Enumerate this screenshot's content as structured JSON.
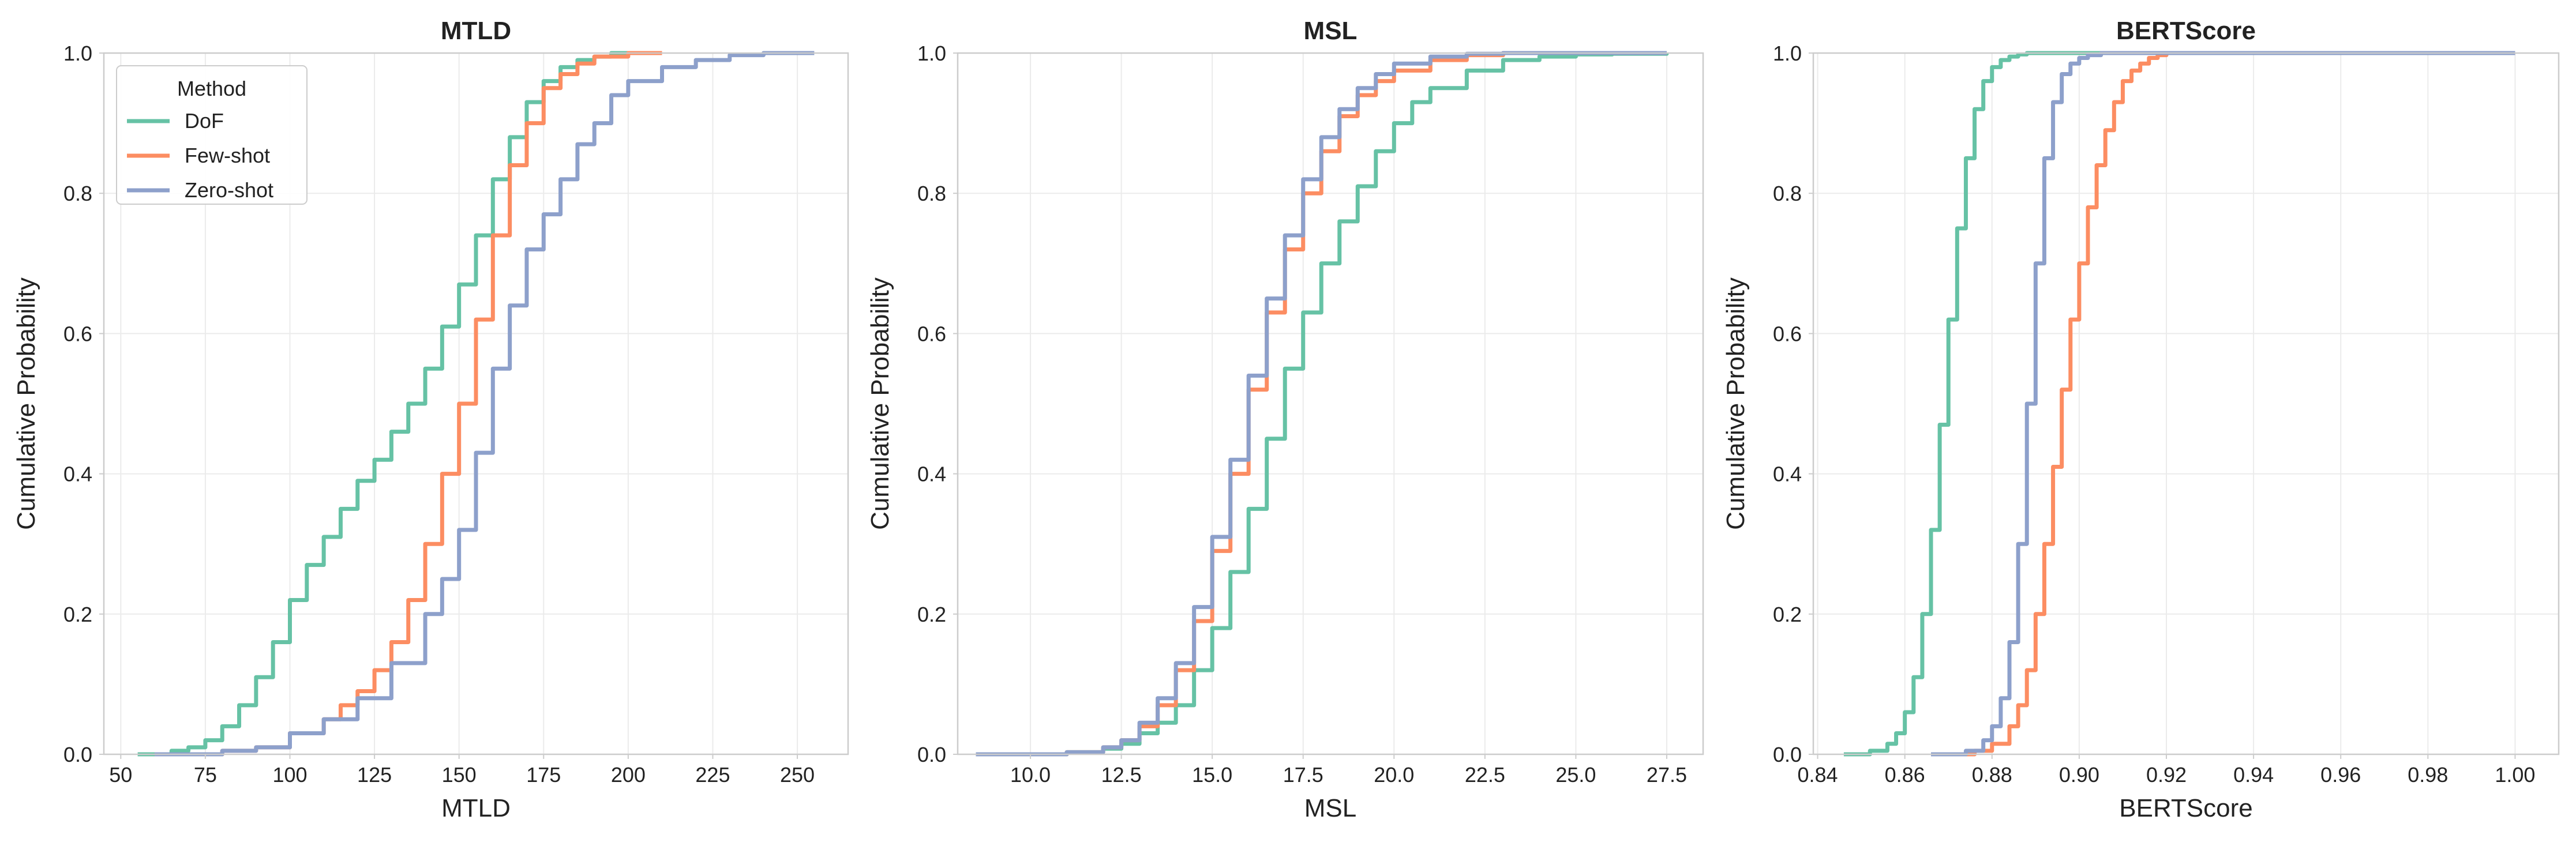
{
  "colors": {
    "DoF": "#66c2a5",
    "Few-shot": "#fc8d62",
    "Zero-shot": "#8da0cb",
    "grid": "#ebebeb",
    "frame": "#cccccc"
  },
  "legend": {
    "title": "Method",
    "placement": "upper-left of first panel",
    "entries": [
      "DoF",
      "Few-shot",
      "Zero-shot"
    ]
  },
  "chart_data": [
    {
      "type": "line",
      "title": "MTLD",
      "xlabel": "MTLD",
      "ylabel": "Cumulative Probability",
      "xlim": [
        45,
        265
      ],
      "ylim": [
        0,
        1
      ],
      "xticks": [
        50,
        75,
        100,
        125,
        150,
        175,
        200,
        225,
        250
      ],
      "xtick_labels": [
        "50",
        "75",
        "100",
        "125",
        "150",
        "175",
        "200",
        "225",
        "250"
      ],
      "yticks": [
        0,
        0.2,
        0.4,
        0.6,
        0.8,
        1.0
      ],
      "ytick_labels": [
        "0.0",
        "0.2",
        "0.4",
        "0.6",
        "0.8",
        "1.0"
      ],
      "grid": true,
      "series": [
        {
          "name": "DoF",
          "x": [
            55,
            65,
            70,
            75,
            80,
            85,
            90,
            95,
            100,
            105,
            110,
            115,
            120,
            125,
            130,
            135,
            140,
            145,
            150,
            155,
            160,
            165,
            170,
            175,
            180,
            185,
            190,
            195,
            200
          ],
          "y": [
            0,
            0.005,
            0.01,
            0.02,
            0.04,
            0.07,
            0.11,
            0.16,
            0.22,
            0.27,
            0.31,
            0.35,
            0.39,
            0.42,
            0.46,
            0.5,
            0.55,
            0.61,
            0.67,
            0.74,
            0.82,
            0.88,
            0.93,
            0.96,
            0.98,
            0.99,
            0.995,
            1.0,
            1.0
          ]
        },
        {
          "name": "Few-shot",
          "x": [
            60,
            80,
            90,
            100,
            110,
            115,
            120,
            125,
            130,
            135,
            140,
            145,
            150,
            155,
            160,
            165,
            170,
            175,
            180,
            185,
            190,
            200,
            210
          ],
          "y": [
            0,
            0.005,
            0.01,
            0.03,
            0.05,
            0.07,
            0.09,
            0.12,
            0.16,
            0.22,
            0.3,
            0.4,
            0.5,
            0.62,
            0.74,
            0.84,
            0.9,
            0.95,
            0.97,
            0.985,
            0.995,
            1.0,
            1.0
          ]
        },
        {
          "name": "Zero-shot",
          "x": [
            60,
            80,
            90,
            100,
            110,
            120,
            130,
            140,
            145,
            150,
            155,
            160,
            165,
            170,
            175,
            180,
            185,
            190,
            195,
            200,
            210,
            220,
            230,
            240,
            255
          ],
          "y": [
            0,
            0.005,
            0.01,
            0.03,
            0.05,
            0.08,
            0.13,
            0.2,
            0.25,
            0.32,
            0.43,
            0.55,
            0.64,
            0.72,
            0.77,
            0.82,
            0.87,
            0.9,
            0.94,
            0.96,
            0.98,
            0.99,
            0.997,
            1.0,
            1.0
          ]
        }
      ]
    },
    {
      "type": "line",
      "title": "MSL",
      "xlabel": "MSL",
      "ylabel": "Cumulative Probability",
      "xlim": [
        8,
        28.5
      ],
      "ylim": [
        0,
        1
      ],
      "xticks": [
        10,
        12.5,
        15,
        17.5,
        20,
        22.5,
        25,
        27.5
      ],
      "xtick_labels": [
        "10.0",
        "12.5",
        "15.0",
        "17.5",
        "20.0",
        "22.5",
        "25.0",
        "27.5"
      ],
      "yticks": [
        0,
        0.2,
        0.4,
        0.6,
        0.8,
        1.0
      ],
      "ytick_labels": [
        "0.0",
        "0.2",
        "0.4",
        "0.6",
        "0.8",
        "1.0"
      ],
      "grid": true,
      "series": [
        {
          "name": "DoF",
          "x": [
            8.5,
            11,
            12,
            12.5,
            13,
            13.5,
            14,
            14.5,
            15,
            15.5,
            16,
            16.5,
            17,
            17.5,
            18,
            18.5,
            19,
            19.5,
            20,
            20.5,
            21,
            22,
            23,
            24,
            25,
            26,
            27.5
          ],
          "y": [
            0,
            0.003,
            0.008,
            0.015,
            0.03,
            0.045,
            0.07,
            0.12,
            0.18,
            0.26,
            0.35,
            0.45,
            0.55,
            0.63,
            0.7,
            0.76,
            0.81,
            0.86,
            0.9,
            0.93,
            0.95,
            0.975,
            0.99,
            0.995,
            0.998,
            0.999,
            1.0
          ]
        },
        {
          "name": "Few-shot",
          "x": [
            8.5,
            11,
            12,
            12.5,
            13,
            13.5,
            14,
            14.5,
            15,
            15.5,
            16,
            16.5,
            17,
            17.5,
            18,
            18.5,
            19,
            19.5,
            20,
            21,
            22,
            23,
            25,
            27.5
          ],
          "y": [
            0,
            0.003,
            0.01,
            0.02,
            0.04,
            0.07,
            0.12,
            0.19,
            0.29,
            0.4,
            0.52,
            0.63,
            0.72,
            0.8,
            0.86,
            0.91,
            0.94,
            0.96,
            0.975,
            0.99,
            0.997,
            1.0,
            1.0,
            1.0
          ]
        },
        {
          "name": "Zero-shot",
          "x": [
            8.5,
            11,
            12,
            12.5,
            13,
            13.5,
            14,
            14.5,
            15,
            15.5,
            16,
            16.5,
            17,
            17.5,
            18,
            18.5,
            19,
            19.5,
            20,
            21,
            22,
            23,
            25,
            27.5
          ],
          "y": [
            0,
            0.003,
            0.01,
            0.02,
            0.045,
            0.08,
            0.13,
            0.21,
            0.31,
            0.42,
            0.54,
            0.65,
            0.74,
            0.82,
            0.88,
            0.92,
            0.95,
            0.97,
            0.985,
            0.995,
            0.999,
            1.0,
            1.0,
            1.0
          ]
        }
      ]
    },
    {
      "type": "line",
      "title": "BERTScore",
      "xlabel": "BERTScore",
      "ylabel": "Cumulative Probability",
      "xlim": [
        0.839,
        1.01
      ],
      "ylim": [
        0,
        1
      ],
      "xticks": [
        0.84,
        0.86,
        0.88,
        0.9,
        0.92,
        0.94,
        0.96,
        0.98,
        1.0
      ],
      "xtick_labels": [
        "0.84",
        "0.86",
        "0.88",
        "0.90",
        "0.92",
        "0.94",
        "0.96",
        "0.98",
        "1.00"
      ],
      "yticks": [
        0,
        0.2,
        0.4,
        0.6,
        0.8,
        1.0
      ],
      "ytick_labels": [
        "0.0",
        "0.2",
        "0.4",
        "0.6",
        "0.8",
        "1.0"
      ],
      "grid": true,
      "series": [
        {
          "name": "DoF",
          "x": [
            0.846,
            0.852,
            0.856,
            0.858,
            0.86,
            0.862,
            0.864,
            0.866,
            0.868,
            0.87,
            0.872,
            0.874,
            0.876,
            0.878,
            0.88,
            0.882,
            0.884,
            0.886,
            0.888,
            0.89,
            1.0
          ],
          "y": [
            0,
            0.005,
            0.015,
            0.03,
            0.06,
            0.11,
            0.2,
            0.32,
            0.47,
            0.62,
            0.75,
            0.85,
            0.92,
            0.96,
            0.98,
            0.99,
            0.995,
            0.998,
            1.0,
            1.0,
            1.0
          ]
        },
        {
          "name": "Few-shot",
          "x": [
            0.87,
            0.876,
            0.88,
            0.884,
            0.886,
            0.888,
            0.89,
            0.892,
            0.894,
            0.896,
            0.898,
            0.9,
            0.902,
            0.904,
            0.906,
            0.908,
            0.91,
            0.912,
            0.914,
            0.916,
            0.918,
            0.92,
            1.0
          ],
          "y": [
            0,
            0.005,
            0.015,
            0.04,
            0.07,
            0.12,
            0.2,
            0.3,
            0.41,
            0.52,
            0.62,
            0.7,
            0.78,
            0.84,
            0.89,
            0.93,
            0.96,
            0.975,
            0.985,
            0.993,
            0.997,
            1.0,
            1.0
          ]
        },
        {
          "name": "Zero-shot",
          "x": [
            0.866,
            0.874,
            0.878,
            0.88,
            0.882,
            0.884,
            0.886,
            0.888,
            0.89,
            0.892,
            0.894,
            0.896,
            0.898,
            0.9,
            0.902,
            0.905,
            0.91,
            1.0
          ],
          "y": [
            0,
            0.005,
            0.02,
            0.04,
            0.08,
            0.16,
            0.3,
            0.5,
            0.7,
            0.85,
            0.93,
            0.97,
            0.985,
            0.993,
            0.997,
            1.0,
            1.0,
            1.0
          ]
        }
      ]
    }
  ]
}
